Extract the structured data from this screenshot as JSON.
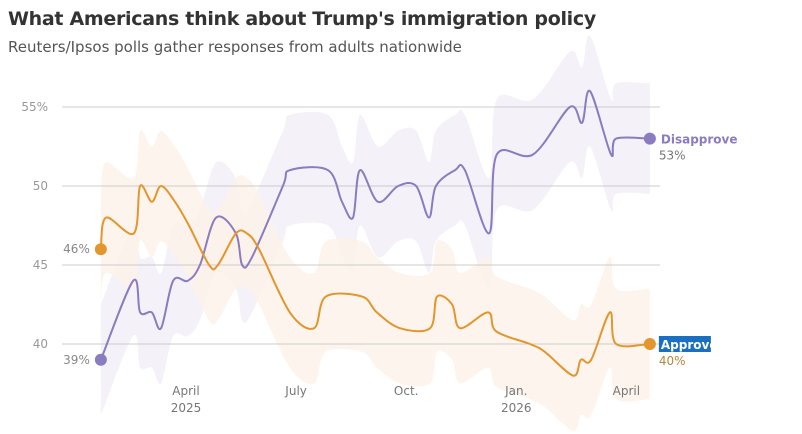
{
  "title": "What Americans think about Trump's immigration policy",
  "subtitle": "Reuters/Ipsos polls gather responses from adults nationwide",
  "chart_data": {
    "type": "line",
    "title": "What Americans think about Trump's immigration policy",
    "subtitle": "Reuters/Ipsos polls gather responses from adults nationwide",
    "x_unit": "months since Jan 1, 2025",
    "ylim": [
      37,
      56.5
    ],
    "yticks": [
      {
        "v": 40,
        "label": "40"
      },
      {
        "v": 45,
        "label": "45"
      },
      {
        "v": 50,
        "label": "50"
      },
      {
        "v": 55,
        "label": "55%"
      }
    ],
    "xticks": [
      {
        "m": 3,
        "label": "April",
        "sub": "2025"
      },
      {
        "m": 6,
        "label": "July",
        "sub": ""
      },
      {
        "m": 9,
        "label": "Oct.",
        "sub": ""
      },
      {
        "m": 12,
        "label": "Jan.",
        "sub": "2026"
      },
      {
        "m": 15,
        "label": "April",
        "sub": ""
      }
    ],
    "grid": true,
    "series": [
      {
        "name": "Disapprove",
        "color": "#8b7bbf",
        "band_color": "#f1eef8",
        "margin": 3.5,
        "start_label": "39%",
        "end_label": "53%",
        "points": [
          [
            0.68,
            39
          ],
          [
            1.56,
            44
          ],
          [
            1.75,
            42
          ],
          [
            2.07,
            42
          ],
          [
            2.32,
            41
          ],
          [
            2.65,
            44
          ],
          [
            3.05,
            44
          ],
          [
            3.38,
            45
          ],
          [
            3.82,
            48
          ],
          [
            4.36,
            47
          ],
          [
            4.53,
            45
          ],
          [
            4.8,
            45.5
          ],
          [
            5.64,
            50
          ],
          [
            5.83,
            51
          ],
          [
            6.87,
            51
          ],
          [
            7.25,
            49
          ],
          [
            7.55,
            48
          ],
          [
            7.74,
            51
          ],
          [
            8.23,
            49
          ],
          [
            8.78,
            50
          ],
          [
            9.27,
            50
          ],
          [
            9.62,
            48
          ],
          [
            9.81,
            50
          ],
          [
            10.33,
            51
          ],
          [
            10.6,
            51
          ],
          [
            11.26,
            47
          ],
          [
            11.47,
            52
          ],
          [
            12.46,
            52
          ],
          [
            13.46,
            55
          ],
          [
            13.79,
            54
          ],
          [
            14.01,
            56
          ],
          [
            14.58,
            52
          ],
          [
            14.72,
            53
          ],
          [
            15.64,
            53
          ]
        ]
      },
      {
        "name": "Approve",
        "color": "#e3952e",
        "band_color": "#fdf3e8",
        "margin": 3.5,
        "start_label": "46%",
        "end_label": "40%",
        "points": [
          [
            0.68,
            46
          ],
          [
            0.82,
            48
          ],
          [
            1.58,
            47
          ],
          [
            1.75,
            50
          ],
          [
            2.07,
            49
          ],
          [
            2.32,
            50
          ],
          [
            2.7,
            49
          ],
          [
            3.08,
            47.5
          ],
          [
            3.63,
            45
          ],
          [
            3.87,
            45
          ],
          [
            4.36,
            47
          ],
          [
            4.66,
            47
          ],
          [
            4.99,
            46
          ],
          [
            5.83,
            42
          ],
          [
            6.49,
            41
          ],
          [
            6.81,
            43
          ],
          [
            7.8,
            43
          ],
          [
            8.2,
            42
          ],
          [
            8.83,
            41
          ],
          [
            9.65,
            41
          ],
          [
            9.84,
            43
          ],
          [
            10.25,
            42.5
          ],
          [
            10.47,
            41
          ],
          [
            11.23,
            42
          ],
          [
            11.45,
            40.8
          ],
          [
            12.37,
            40
          ],
          [
            12.78,
            39.5
          ],
          [
            13.55,
            38
          ],
          [
            13.76,
            39
          ],
          [
            14.04,
            39
          ],
          [
            14.55,
            42
          ],
          [
            14.72,
            40
          ],
          [
            15.64,
            40
          ]
        ]
      }
    ]
  }
}
